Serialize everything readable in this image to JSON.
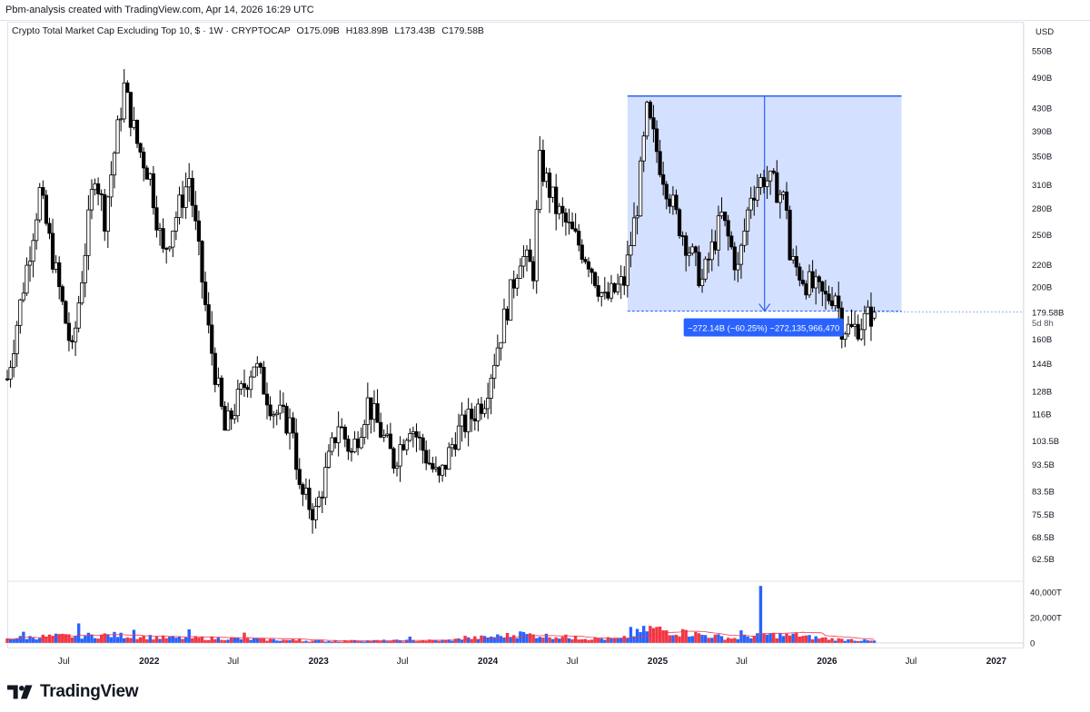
{
  "header": {
    "creator_text": "Pbm-analysis created with TradingView.com, Apr 14, 2026 16:29 UTC"
  },
  "legend": {
    "title": "Crypto Total Market Cap Excluding Top 10, $ · 1W · CRYPTOCAP",
    "open": "O175.09B",
    "high": "H183.89B",
    "low": "L173.43B",
    "close": "C179.58B"
  },
  "footer": {
    "brand": "TradingView"
  },
  "chart_data": {
    "type": "candlestick",
    "currency_label": "USD",
    "y_scale": "log",
    "ylim": [
      57,
      620
    ],
    "xlim": [
      "2021-03-01",
      "2027-03-01"
    ],
    "price_ticks": [
      "550B",
      "490B",
      "430B",
      "390B",
      "350B",
      "310B",
      "280B",
      "250B",
      "220B",
      "200B",
      "160B",
      "144B",
      "128B",
      "116B",
      "103.5B",
      "93.5B",
      "83.5B",
      "75.5B",
      "68.5B",
      "62.5B"
    ],
    "price_tick_values": [
      550,
      490,
      430,
      390,
      350,
      310,
      280,
      250,
      220,
      200,
      160,
      144,
      128,
      116,
      103.5,
      93.5,
      83.5,
      75.5,
      68.5,
      62.5
    ],
    "last_price_label": "179.58B",
    "countdown_label": "5d 8h",
    "last_price": 179.58,
    "volume_ticks": [
      "40,000T",
      "20,000T",
      "0"
    ],
    "volume_tick_values": [
      40000,
      20000,
      0
    ],
    "volume_max": 48000,
    "time_ticks": [
      {
        "label": "Jul",
        "date": "2021-07-01",
        "bold": false
      },
      {
        "label": "2022",
        "date": "2022-01-01",
        "bold": true
      },
      {
        "label": "Jul",
        "date": "2022-07-01",
        "bold": false
      },
      {
        "label": "2023",
        "date": "2023-01-01",
        "bold": true
      },
      {
        "label": "Jul",
        "date": "2023-07-01",
        "bold": false
      },
      {
        "label": "2024",
        "date": "2024-01-01",
        "bold": true
      },
      {
        "label": "Jul",
        "date": "2024-07-01",
        "bold": false
      },
      {
        "label": "2025",
        "date": "2025-01-01",
        "bold": true
      },
      {
        "label": "Jul",
        "date": "2025-07-01",
        "bold": false
      },
      {
        "label": "2026",
        "date": "2026-01-01",
        "bold": true
      },
      {
        "label": "Jul",
        "date": "2026-07-01",
        "bold": false
      },
      {
        "label": "2027",
        "date": "2027-01-01",
        "bold": true
      }
    ],
    "price_anchors": [
      [
        "2021-03-01",
        135
      ],
      [
        "2021-05-10",
        300
      ],
      [
        "2021-07-19",
        150
      ],
      [
        "2021-09-06",
        330
      ],
      [
        "2021-09-27",
        270
      ],
      [
        "2021-11-08",
        470
      ],
      [
        "2021-12-06",
        370
      ],
      [
        "2022-01-03",
        320
      ],
      [
        "2022-01-31",
        230
      ],
      [
        "2022-03-28",
        320
      ],
      [
        "2022-05-09",
        165
      ],
      [
        "2022-06-13",
        108
      ],
      [
        "2022-08-15",
        145
      ],
      [
        "2022-09-26",
        118
      ],
      [
        "2022-11-07",
        110
      ],
      [
        "2022-11-21",
        83
      ],
      [
        "2022-12-26",
        76
      ],
      [
        "2023-02-13",
        112
      ],
      [
        "2023-03-13",
        98
      ],
      [
        "2023-04-17",
        122
      ],
      [
        "2023-06-12",
        95
      ],
      [
        "2023-07-17",
        112
      ],
      [
        "2023-08-21",
        97
      ],
      [
        "2023-09-18",
        87
      ],
      [
        "2023-10-23",
        106
      ],
      [
        "2023-11-27",
        115
      ],
      [
        "2023-12-25",
        125
      ],
      [
        "2024-03-11",
        230
      ],
      [
        "2024-04-08",
        215
      ],
      [
        "2024-04-22",
        340
      ],
      [
        "2024-05-27",
        280
      ],
      [
        "2024-08-05",
        225
      ],
      [
        "2024-09-09",
        188
      ],
      [
        "2024-10-21",
        205
      ],
      [
        "2024-11-18",
        285
      ],
      [
        "2024-12-09",
        420
      ],
      [
        "2025-01-06",
        340
      ],
      [
        "2025-02-10",
        270
      ],
      [
        "2025-04-07",
        205
      ],
      [
        "2025-05-19",
        270
      ],
      [
        "2025-06-23",
        215
      ],
      [
        "2025-07-21",
        300
      ],
      [
        "2025-08-18",
        320
      ],
      [
        "2025-09-15",
        305
      ],
      [
        "2025-10-06",
        285
      ],
      [
        "2025-10-13",
        225
      ],
      [
        "2025-11-17",
        205
      ],
      [
        "2025-12-29",
        190
      ],
      [
        "2026-01-19",
        196
      ],
      [
        "2026-02-02",
        170
      ],
      [
        "2026-02-23",
        166
      ],
      [
        "2026-04-13",
        179.58
      ]
    ],
    "volume_anchors": [
      [
        "2021-03-01",
        3500
      ],
      [
        "2021-06-01",
        5000
      ],
      [
        "2021-10-15",
        6000
      ],
      [
        "2022-02-01",
        4000
      ],
      [
        "2022-06-15",
        3500
      ],
      [
        "2023-01-01",
        1500
      ],
      [
        "2023-10-01",
        2000
      ],
      [
        "2024-03-15",
        6500
      ],
      [
        "2024-08-01",
        3500
      ],
      [
        "2024-10-15",
        3000
      ],
      [
        "2024-12-15",
        11000
      ],
      [
        "2025-03-15",
        7000
      ],
      [
        "2025-06-15",
        3500
      ],
      [
        "2025-08-15",
        6500
      ],
      [
        "2025-11-01",
        5000
      ],
      [
        "2026-01-15",
        3000
      ],
      [
        "2026-04-13",
        1500
      ]
    ],
    "measurement": {
      "start": [
        "2024-10-28",
        453
      ],
      "end": [
        "2026-04-13",
        180.5
      ],
      "label": "−272.14B (−60.25%) −272,135,966,470",
      "box_color": "#2962ff",
      "label_bg": "#2962ff"
    },
    "colors": {
      "candle": "#000000",
      "volume_up": "#2962ff",
      "volume_down": "#f23645",
      "volume_ma": "#f23645",
      "grid_border": "#e0e3eb"
    },
    "grid": false,
    "legend_position": "top-left"
  }
}
